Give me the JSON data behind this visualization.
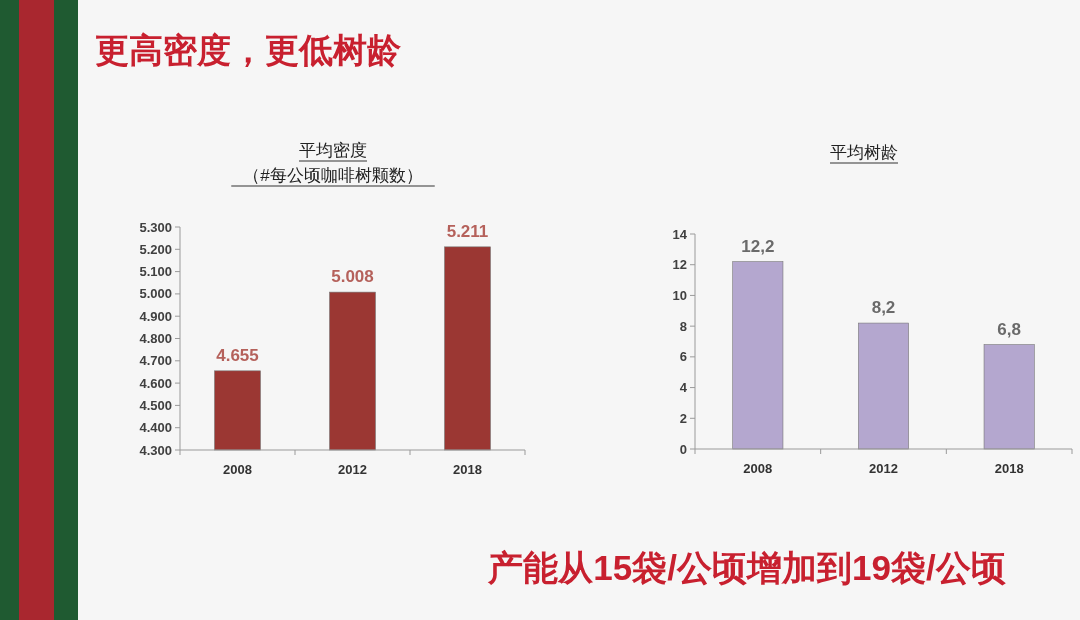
{
  "chart_data": [
    {
      "type": "other",
      "title": "更高密度，更低树龄",
      "annotations": [
        "产能从15袋/公顷增加到19袋/公顷"
      ]
    },
    {
      "type": "bar",
      "title": "平均密度",
      "subtitle": "（#每公顷咖啡树颗数）",
      "categories": [
        "2008",
        "2012",
        "2018"
      ],
      "values": [
        4655,
        5008,
        5211
      ],
      "color": "#9b3733",
      "value_labels": [
        "4.655",
        "5.008",
        "5.211"
      ],
      "ylim": [
        4300,
        5300
      ],
      "yticks": [
        {
          "value": 4300,
          "label": "4.300"
        },
        {
          "value": 4400,
          "label": "4.400"
        },
        {
          "value": 4500,
          "label": "4.500"
        },
        {
          "value": 4600,
          "label": "4.600"
        },
        {
          "value": 4700,
          "label": "4.700"
        },
        {
          "value": 4800,
          "label": "4.800"
        },
        {
          "value": 4900,
          "label": "4.900"
        },
        {
          "value": 5000,
          "label": "5.000"
        },
        {
          "value": 5100,
          "label": "5.100"
        },
        {
          "value": 5200,
          "label": "5.200"
        },
        {
          "value": 5300,
          "label": "5.300"
        }
      ]
    },
    {
      "type": "bar",
      "title": "平均树龄",
      "categories": [
        "2008",
        "2012",
        "2018"
      ],
      "values": [
        12.2,
        8.2,
        6.8
      ],
      "color": "#b4a7cf",
      "value_labels": [
        "12,2",
        "8,2",
        "6,8"
      ],
      "ylim": [
        0,
        14
      ],
      "yticks": [
        0,
        2,
        4,
        6,
        8,
        10,
        12,
        14
      ]
    }
  ]
}
